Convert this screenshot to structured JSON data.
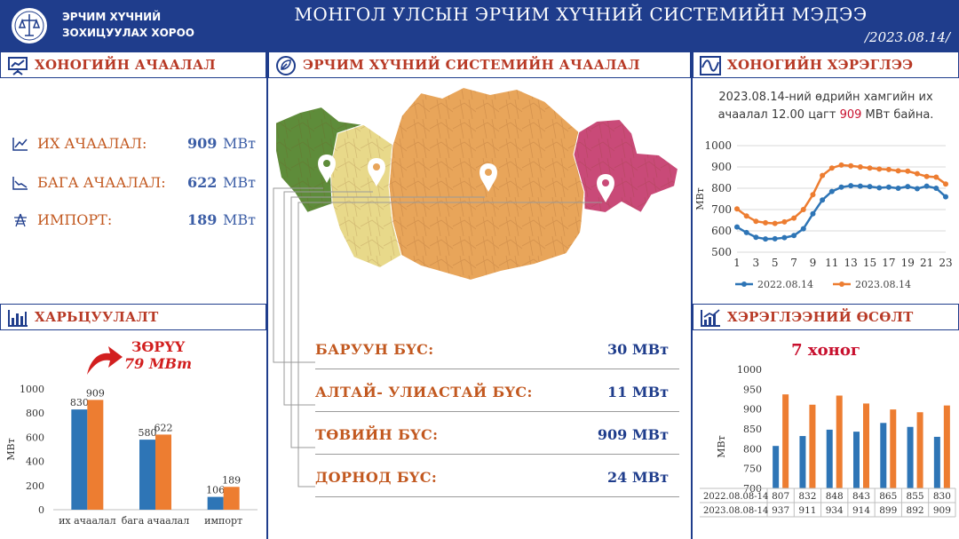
{
  "header": {
    "org_line1": "ЭРЧИМ ХҮЧНИЙ",
    "org_line2": "ЗОХИЦУУЛАХ ХОРОО",
    "title": "МОНГОЛ УЛСЫН ЭРЧИМ ХҮЧНИЙ СИСТЕМИЙН МЭДЭЭ",
    "date": "/2023.08.14/",
    "bg_color": "#1f3d8c"
  },
  "sections": {
    "daily_load": "ХОНОГИЙН АЧААЛАЛ",
    "system_load": "ЭРЧИМ ХҮЧНИЙ СИСТЕМИЙН АЧААЛАЛ",
    "daily_consumption": "ХОНОГИЙН ХЭРЭГЛЭЭ",
    "comparison": "ХАРЬЦУУЛАЛТ",
    "consumption_growth": "ХЭРЭГЛЭЭНИЙ ӨСӨЛТ"
  },
  "daily_load": {
    "peak": {
      "label": "ИХ АЧААЛАЛ:",
      "value": "909",
      "unit": "МВт",
      "icon": "line-chart-icon"
    },
    "low": {
      "label": "БАГА АЧААЛАЛ:",
      "value": "622",
      "unit": "МВт",
      "icon": "area-chart-icon"
    },
    "import": {
      "label": "ИМПОРТ:",
      "value": "189",
      "unit": "МВт",
      "icon": "transmission-tower-icon"
    }
  },
  "regions": [
    {
      "name": "БАРУУН БҮС:",
      "value": "30 МВт",
      "color": "#5e8c3a"
    },
    {
      "name": "АЛТАЙ- УЛИАСТАЙ БҮС:",
      "value": "11 МВт",
      "color": "#e8d98a"
    },
    {
      "name": "ТӨВИЙН БҮС:",
      "value": "909 МВт",
      "color": "#e8a55a"
    },
    {
      "name": "ДОРНОД БҮС:",
      "value": "24 МВт",
      "color": "#c94a78"
    }
  ],
  "daily_note": {
    "before": "2023.08.14-ний өдрийн хамгийн их ачаалал 12.00 цагт",
    "highlight": "909",
    "after": "МВт байна."
  },
  "comparison_delta": {
    "label": "ЗӨРҮҮ",
    "value": "79 МВт"
  },
  "week_title": "7 хоног",
  "chart_data": [
    {
      "type": "line",
      "title": "",
      "xlabel": "",
      "ylabel": "МВт",
      "ylim": [
        500,
        1000
      ],
      "yticks": [
        500,
        600,
        700,
        800,
        900,
        1000
      ],
      "x": [
        1,
        2,
        3,
        4,
        5,
        6,
        7,
        8,
        9,
        10,
        11,
        12,
        13,
        14,
        15,
        16,
        17,
        18,
        19,
        20,
        21,
        22,
        23
      ],
      "xtick_labels": [
        1,
        3,
        5,
        7,
        9,
        11,
        13,
        15,
        17,
        19,
        21,
        23
      ],
      "legend": "bottom",
      "grid": true,
      "series": [
        {
          "name": "2022.08.14",
          "color": "#2e75b6",
          "values": [
            618,
            592,
            570,
            562,
            563,
            568,
            578,
            610,
            680,
            745,
            785,
            805,
            812,
            810,
            808,
            802,
            805,
            800,
            808,
            798,
            810,
            800,
            760
          ]
        },
        {
          "name": "2023.08.14",
          "color": "#ed7d31",
          "values": [
            703,
            670,
            645,
            638,
            635,
            642,
            660,
            700,
            770,
            860,
            895,
            909,
            905,
            900,
            895,
            890,
            888,
            882,
            880,
            868,
            855,
            852,
            820
          ]
        }
      ]
    },
    {
      "type": "bar",
      "title": "",
      "ylabel": "МВт",
      "ylim": [
        0,
        1000
      ],
      "yticks": [
        0,
        200,
        400,
        600,
        800,
        1000
      ],
      "categories": [
        "их ачаалал",
        "бага ачаалал",
        "импорт"
      ],
      "series": [
        {
          "name": "",
          "color": "#2e75b6",
          "values": [
            830,
            580,
            106
          ]
        },
        {
          "name": "",
          "color": "#ed7d31",
          "values": [
            909,
            622,
            189
          ]
        }
      ]
    },
    {
      "type": "bar",
      "title": "7 хоног",
      "ylabel": "МВт",
      "ylim": [
        700,
        1000
      ],
      "yticks": [
        700,
        750,
        800,
        850,
        900,
        950,
        1000
      ],
      "categories": [
        "",
        "",
        "",
        "",
        "",
        "",
        ""
      ],
      "series": [
        {
          "name": "2022.08.08-14",
          "color": "#2e75b6",
          "values": [
            807,
            832,
            848,
            843,
            865,
            855,
            830
          ]
        },
        {
          "name": "2023.08.08-14",
          "color": "#ed7d31",
          "values": [
            937,
            911,
            934,
            914,
            899,
            892,
            909
          ]
        }
      ]
    }
  ]
}
